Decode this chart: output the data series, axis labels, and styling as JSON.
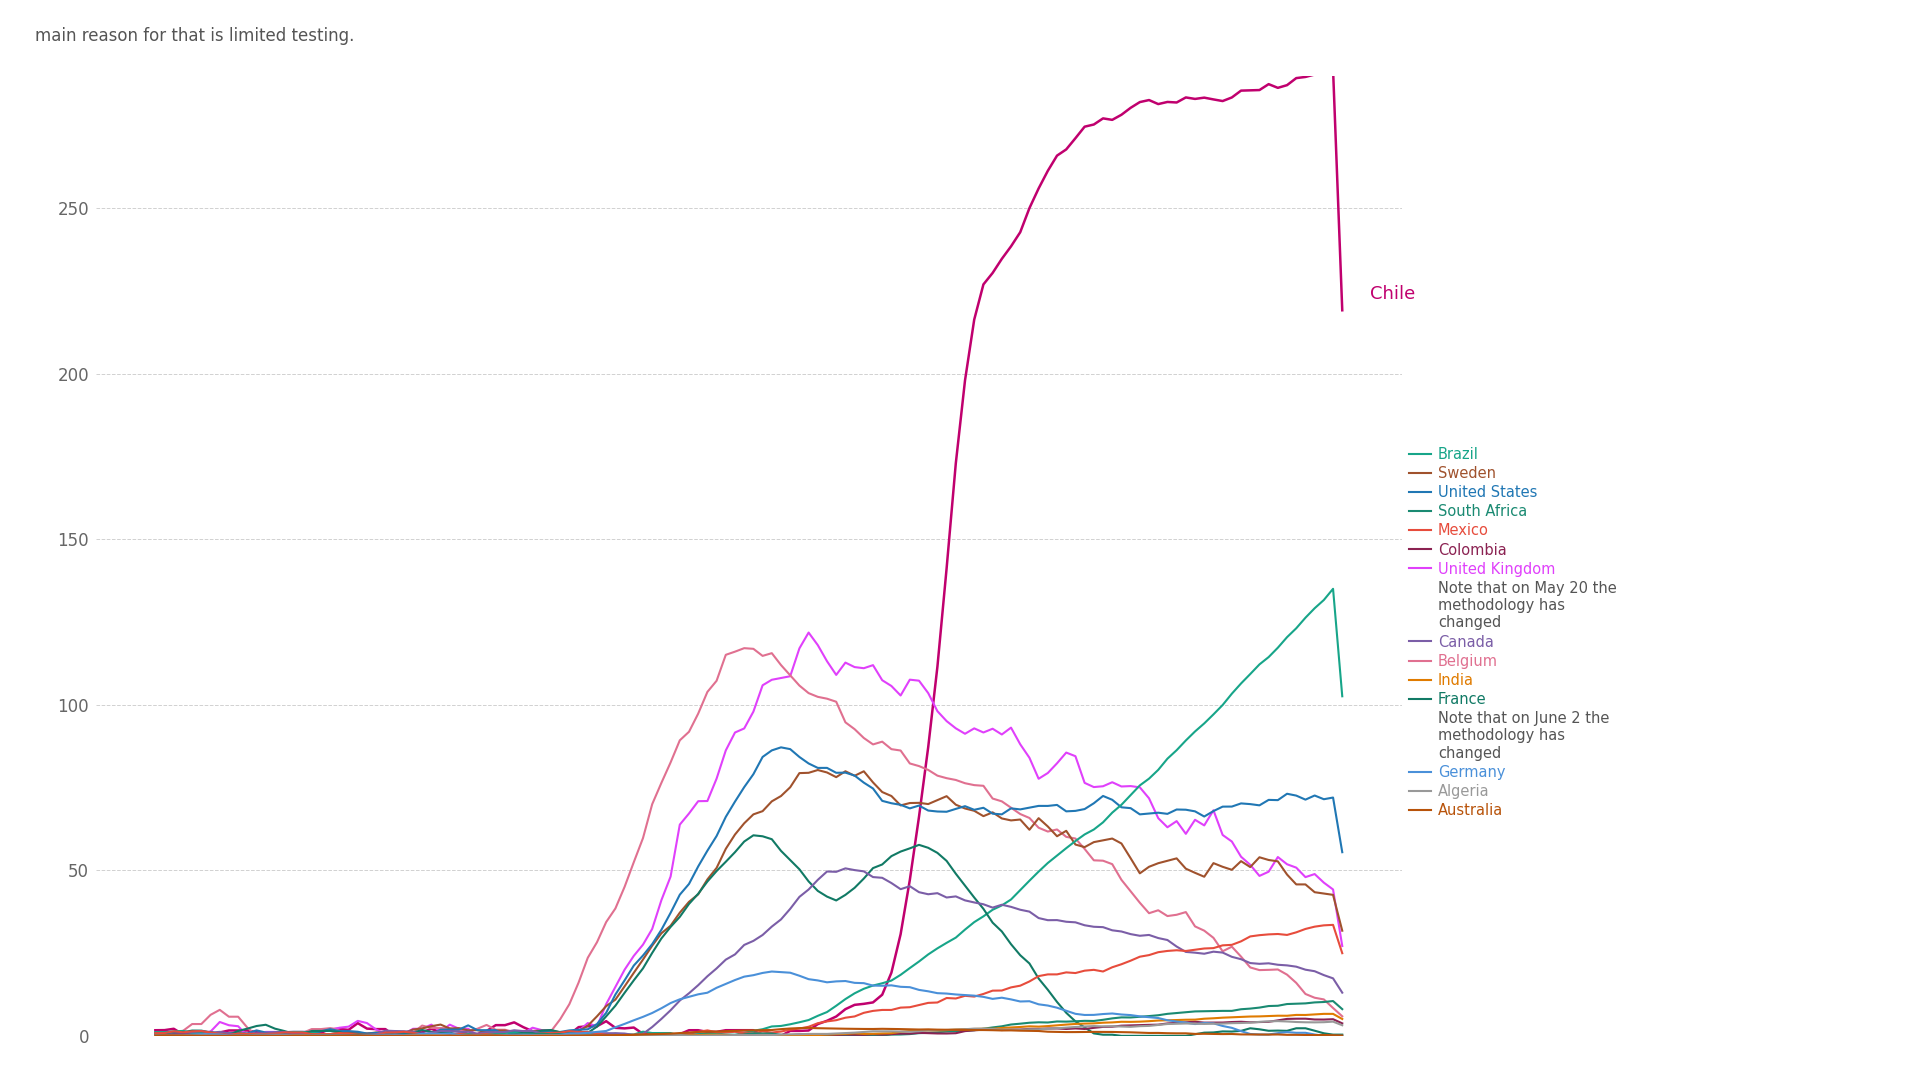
{
  "background_color": "#ffffff",
  "header_text": "main reason for that is limited testing.",
  "ylim": [
    0,
    290
  ],
  "yticks": [
    0,
    50,
    100,
    150,
    200,
    250
  ],
  "countries": [
    {
      "name": "Chile",
      "color": "#c0006e",
      "lw": 1.8
    },
    {
      "name": "United Kingdom",
      "color": "#e040fb",
      "lw": 1.5
    },
    {
      "name": "Belgium",
      "color": "#e07090",
      "lw": 1.5
    },
    {
      "name": "Sweden",
      "color": "#a0522d",
      "lw": 1.5
    },
    {
      "name": "United States",
      "color": "#2077b4",
      "lw": 1.5
    },
    {
      "name": "Brazil",
      "color": "#17a589",
      "lw": 1.5
    },
    {
      "name": "France",
      "color": "#117a65",
      "lw": 1.5
    },
    {
      "name": "Canada",
      "color": "#7b5ea7",
      "lw": 1.5
    },
    {
      "name": "Mexico",
      "color": "#e74c3c",
      "lw": 1.5
    },
    {
      "name": "South Africa",
      "color": "#1a8a72",
      "lw": 1.5
    },
    {
      "name": "Colombia",
      "color": "#8b2252",
      "lw": 1.5
    },
    {
      "name": "India",
      "color": "#e07b00",
      "lw": 1.5
    },
    {
      "name": "Germany",
      "color": "#4a90d9",
      "lw": 1.5
    },
    {
      "name": "Algeria",
      "color": "#999999",
      "lw": 1.5
    },
    {
      "name": "Australia",
      "color": "#b8530a",
      "lw": 1.5
    }
  ],
  "legend_entries": [
    {
      "name": "Brazil",
      "color": "#17a589",
      "is_note": false
    },
    {
      "name": "Sweden",
      "color": "#a0522d",
      "is_note": false
    },
    {
      "name": "United States",
      "color": "#2077b4",
      "is_note": false
    },
    {
      "name": "South Africa",
      "color": "#1a8a72",
      "is_note": false
    },
    {
      "name": "Mexico",
      "color": "#e74c3c",
      "is_note": false
    },
    {
      "name": "Colombia",
      "color": "#8b2252",
      "is_note": false
    },
    {
      "name": "United Kingdom",
      "color": "#e040fb",
      "is_note": false
    },
    {
      "name": "Note that on May 20 the\nmethodology has\nchanged",
      "color": "#555555",
      "is_note": true
    },
    {
      "name": "Canada",
      "color": "#7b5ea7",
      "is_note": false
    },
    {
      "name": "Belgium",
      "color": "#e07090",
      "is_note": false
    },
    {
      "name": "India",
      "color": "#e07b00",
      "is_note": false
    },
    {
      "name": "France",
      "color": "#117a65",
      "is_note": false
    },
    {
      "name": "Note that on June 2 the\nmethodology has\nchanged",
      "color": "#555555",
      "is_note": true
    },
    {
      "name": "Germany",
      "color": "#4a90d9",
      "is_note": false
    },
    {
      "name": "Algeria",
      "color": "#999999",
      "is_note": false
    },
    {
      "name": "Australia",
      "color": "#b8530a",
      "is_note": false
    }
  ]
}
